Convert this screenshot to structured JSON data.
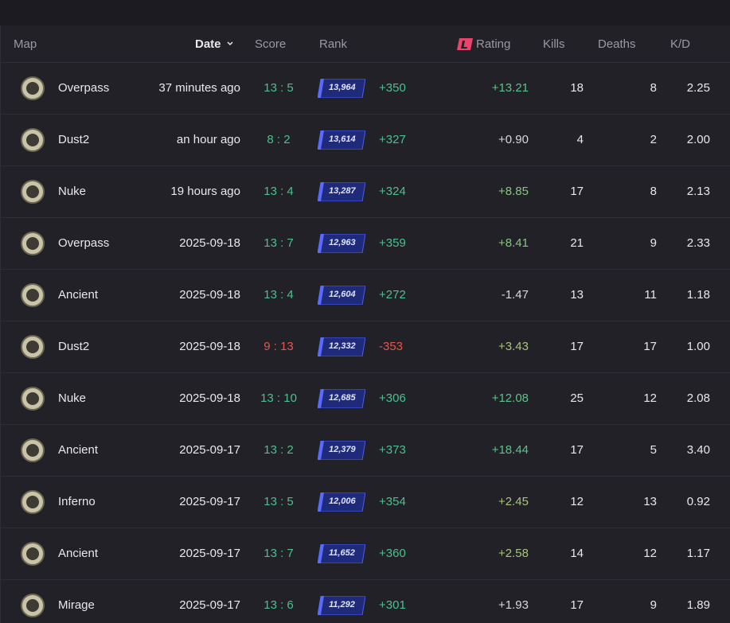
{
  "header": {
    "map": "Map",
    "date": "Date",
    "score": "Score",
    "rank": "Rank",
    "rating": "Rating",
    "kills": "Kills",
    "deaths": "Deaths",
    "kd": "K/D"
  },
  "rows": [
    {
      "map": "Overpass",
      "date": "37 minutes ago",
      "score": "13 : 5",
      "rank": "13,964",
      "rank_change": "+350",
      "rating": "+13.21",
      "kills": "18",
      "deaths": "8",
      "kd": "2.25",
      "color": "#4cc08c",
      "rating_color": "#5cc28a"
    },
    {
      "map": "Dust2",
      "date": "an hour ago",
      "score": "8 : 2",
      "rank": "13,614",
      "rank_change": "+327",
      "rating": "+0.90",
      "kills": "4",
      "deaths": "2",
      "kd": "2.00",
      "color": "#4cc08c",
      "rating_color": "#d8d8dc"
    },
    {
      "map": "Nuke",
      "date": "19 hours ago",
      "score": "13 : 4",
      "rank": "13,287",
      "rank_change": "+324",
      "rating": "+8.85",
      "kills": "17",
      "deaths": "8",
      "kd": "2.13",
      "color": "#4cc08c",
      "rating_color": "#86c77c"
    },
    {
      "map": "Overpass",
      "date": "2025-09-18",
      "score": "13 : 7",
      "rank": "12,963",
      "rank_change": "+359",
      "rating": "+8.41",
      "kills": "21",
      "deaths": "9",
      "kd": "2.33",
      "color": "#4cc08c",
      "rating_color": "#86c77c"
    },
    {
      "map": "Ancient",
      "date": "2025-09-18",
      "score": "13 : 4",
      "rank": "12,604",
      "rank_change": "+272",
      "rating": "-1.47",
      "kills": "13",
      "deaths": "11",
      "kd": "1.18",
      "color": "#4cc08c",
      "rating_color": "#d8d8dc"
    },
    {
      "map": "Dust2",
      "date": "2025-09-18",
      "score": "9 : 13",
      "rank": "12,332",
      "rank_change": "-353",
      "rating": "+3.43",
      "kills": "17",
      "deaths": "17",
      "kd": "1.00",
      "color": "#e5574d",
      "rating_color": "#a9c57a"
    },
    {
      "map": "Nuke",
      "date": "2025-09-18",
      "score": "13 : 10",
      "rank": "12,685",
      "rank_change": "+306",
      "rating": "+12.08",
      "kills": "25",
      "deaths": "12",
      "kd": "2.08",
      "color": "#4cc08c",
      "rating_color": "#5cc28a"
    },
    {
      "map": "Ancient",
      "date": "2025-09-17",
      "score": "13 : 2",
      "rank": "12,379",
      "rank_change": "+373",
      "rating": "+18.44",
      "kills": "17",
      "deaths": "5",
      "kd": "3.40",
      "color": "#4cc08c",
      "rating_color": "#5cc28a"
    },
    {
      "map": "Inferno",
      "date": "2025-09-17",
      "score": "13 : 5",
      "rank": "12,006",
      "rank_change": "+354",
      "rating": "+2.45",
      "kills": "12",
      "deaths": "13",
      "kd": "0.92",
      "color": "#4cc08c",
      "rating_color": "#a9c57a"
    },
    {
      "map": "Ancient",
      "date": "2025-09-17",
      "score": "13 : 7",
      "rank": "11,652",
      "rank_change": "+360",
      "rating": "+2.58",
      "kills": "14",
      "deaths": "12",
      "kd": "1.17",
      "color": "#4cc08c",
      "rating_color": "#a9c57a"
    },
    {
      "map": "Mirage",
      "date": "2025-09-17",
      "score": "13 : 6",
      "rank": "11,292",
      "rank_change": "+301",
      "rating": "+1.93",
      "kills": "17",
      "deaths": "9",
      "kd": "1.89",
      "color": "#4cc08c",
      "rating_color": "#d8d8dc"
    }
  ]
}
